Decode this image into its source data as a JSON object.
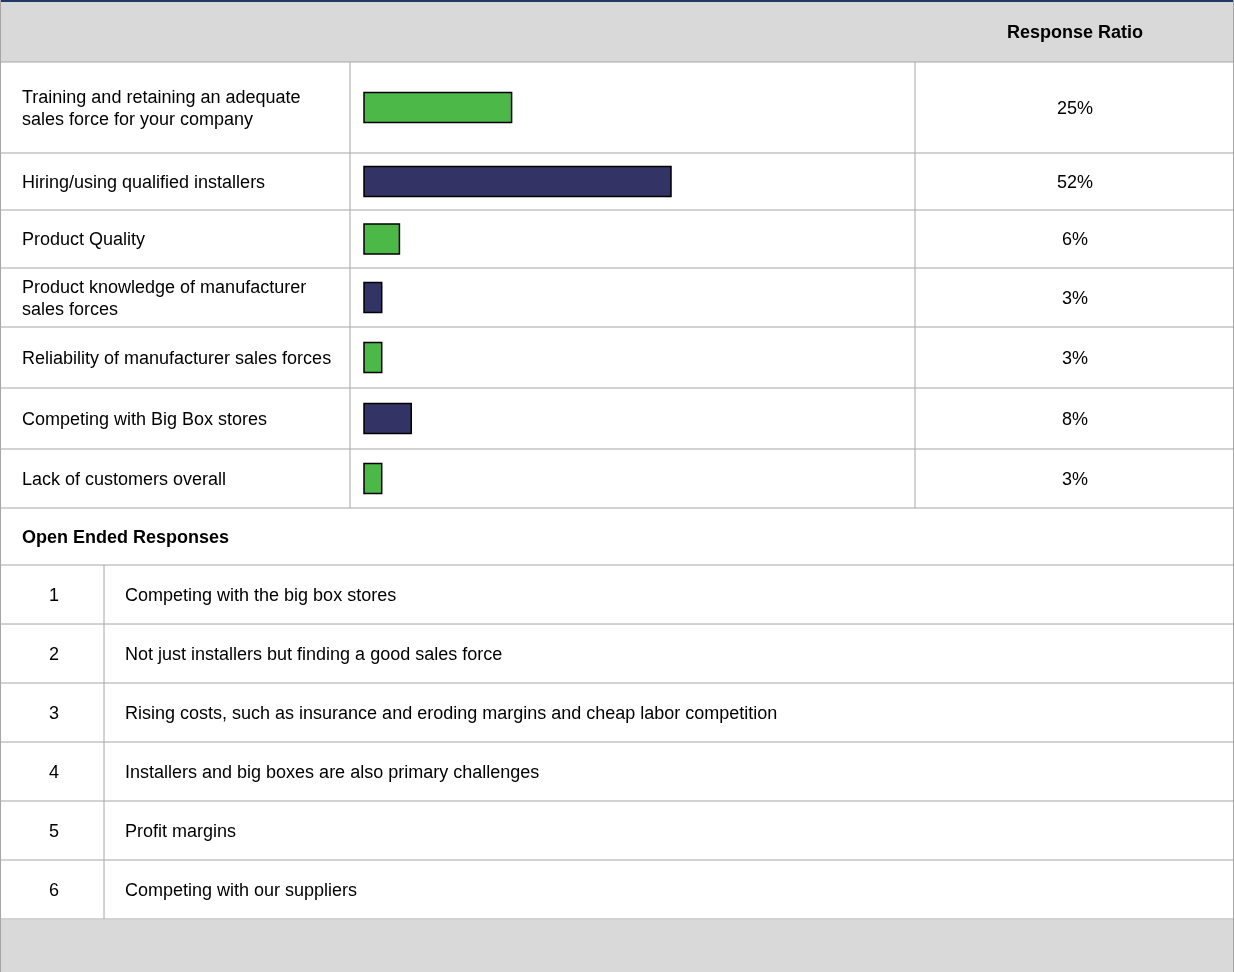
{
  "chart_data": {
    "type": "bar",
    "orientation": "horizontal",
    "categories": [
      "Training and retaining an adequate sales force for your company",
      "Hiring/using qualified installers",
      "Product Quality",
      "Product knowledge of manufacturer sales forces",
      "Reliability of manufacturer sales forces",
      "Competing with Big Box stores",
      "Lack of customers overall"
    ],
    "values": [
      25,
      52,
      6,
      3,
      3,
      8,
      3
    ],
    "colors": [
      "#4cb848",
      "#333366",
      "#4cb848",
      "#333366",
      "#4cb848",
      "#333366",
      "#4cb848"
    ],
    "value_labels": [
      "25%",
      "52%",
      "6%",
      "3%",
      "3%",
      "8%",
      "3%"
    ],
    "annotations": [
      "Response Ratio",
      "Open Ended Responses",
      "1",
      "Competing with the big box stores",
      "2",
      "Not just installers but finding a good sales force",
      "3",
      "Rising costs, such as insurance and eroding margins and cheap labor competition",
      "4",
      "Installers and big boxes are also primary challenges",
      "5",
      "Profit margins",
      "6",
      "Competing with our suppliers"
    ]
  }
}
